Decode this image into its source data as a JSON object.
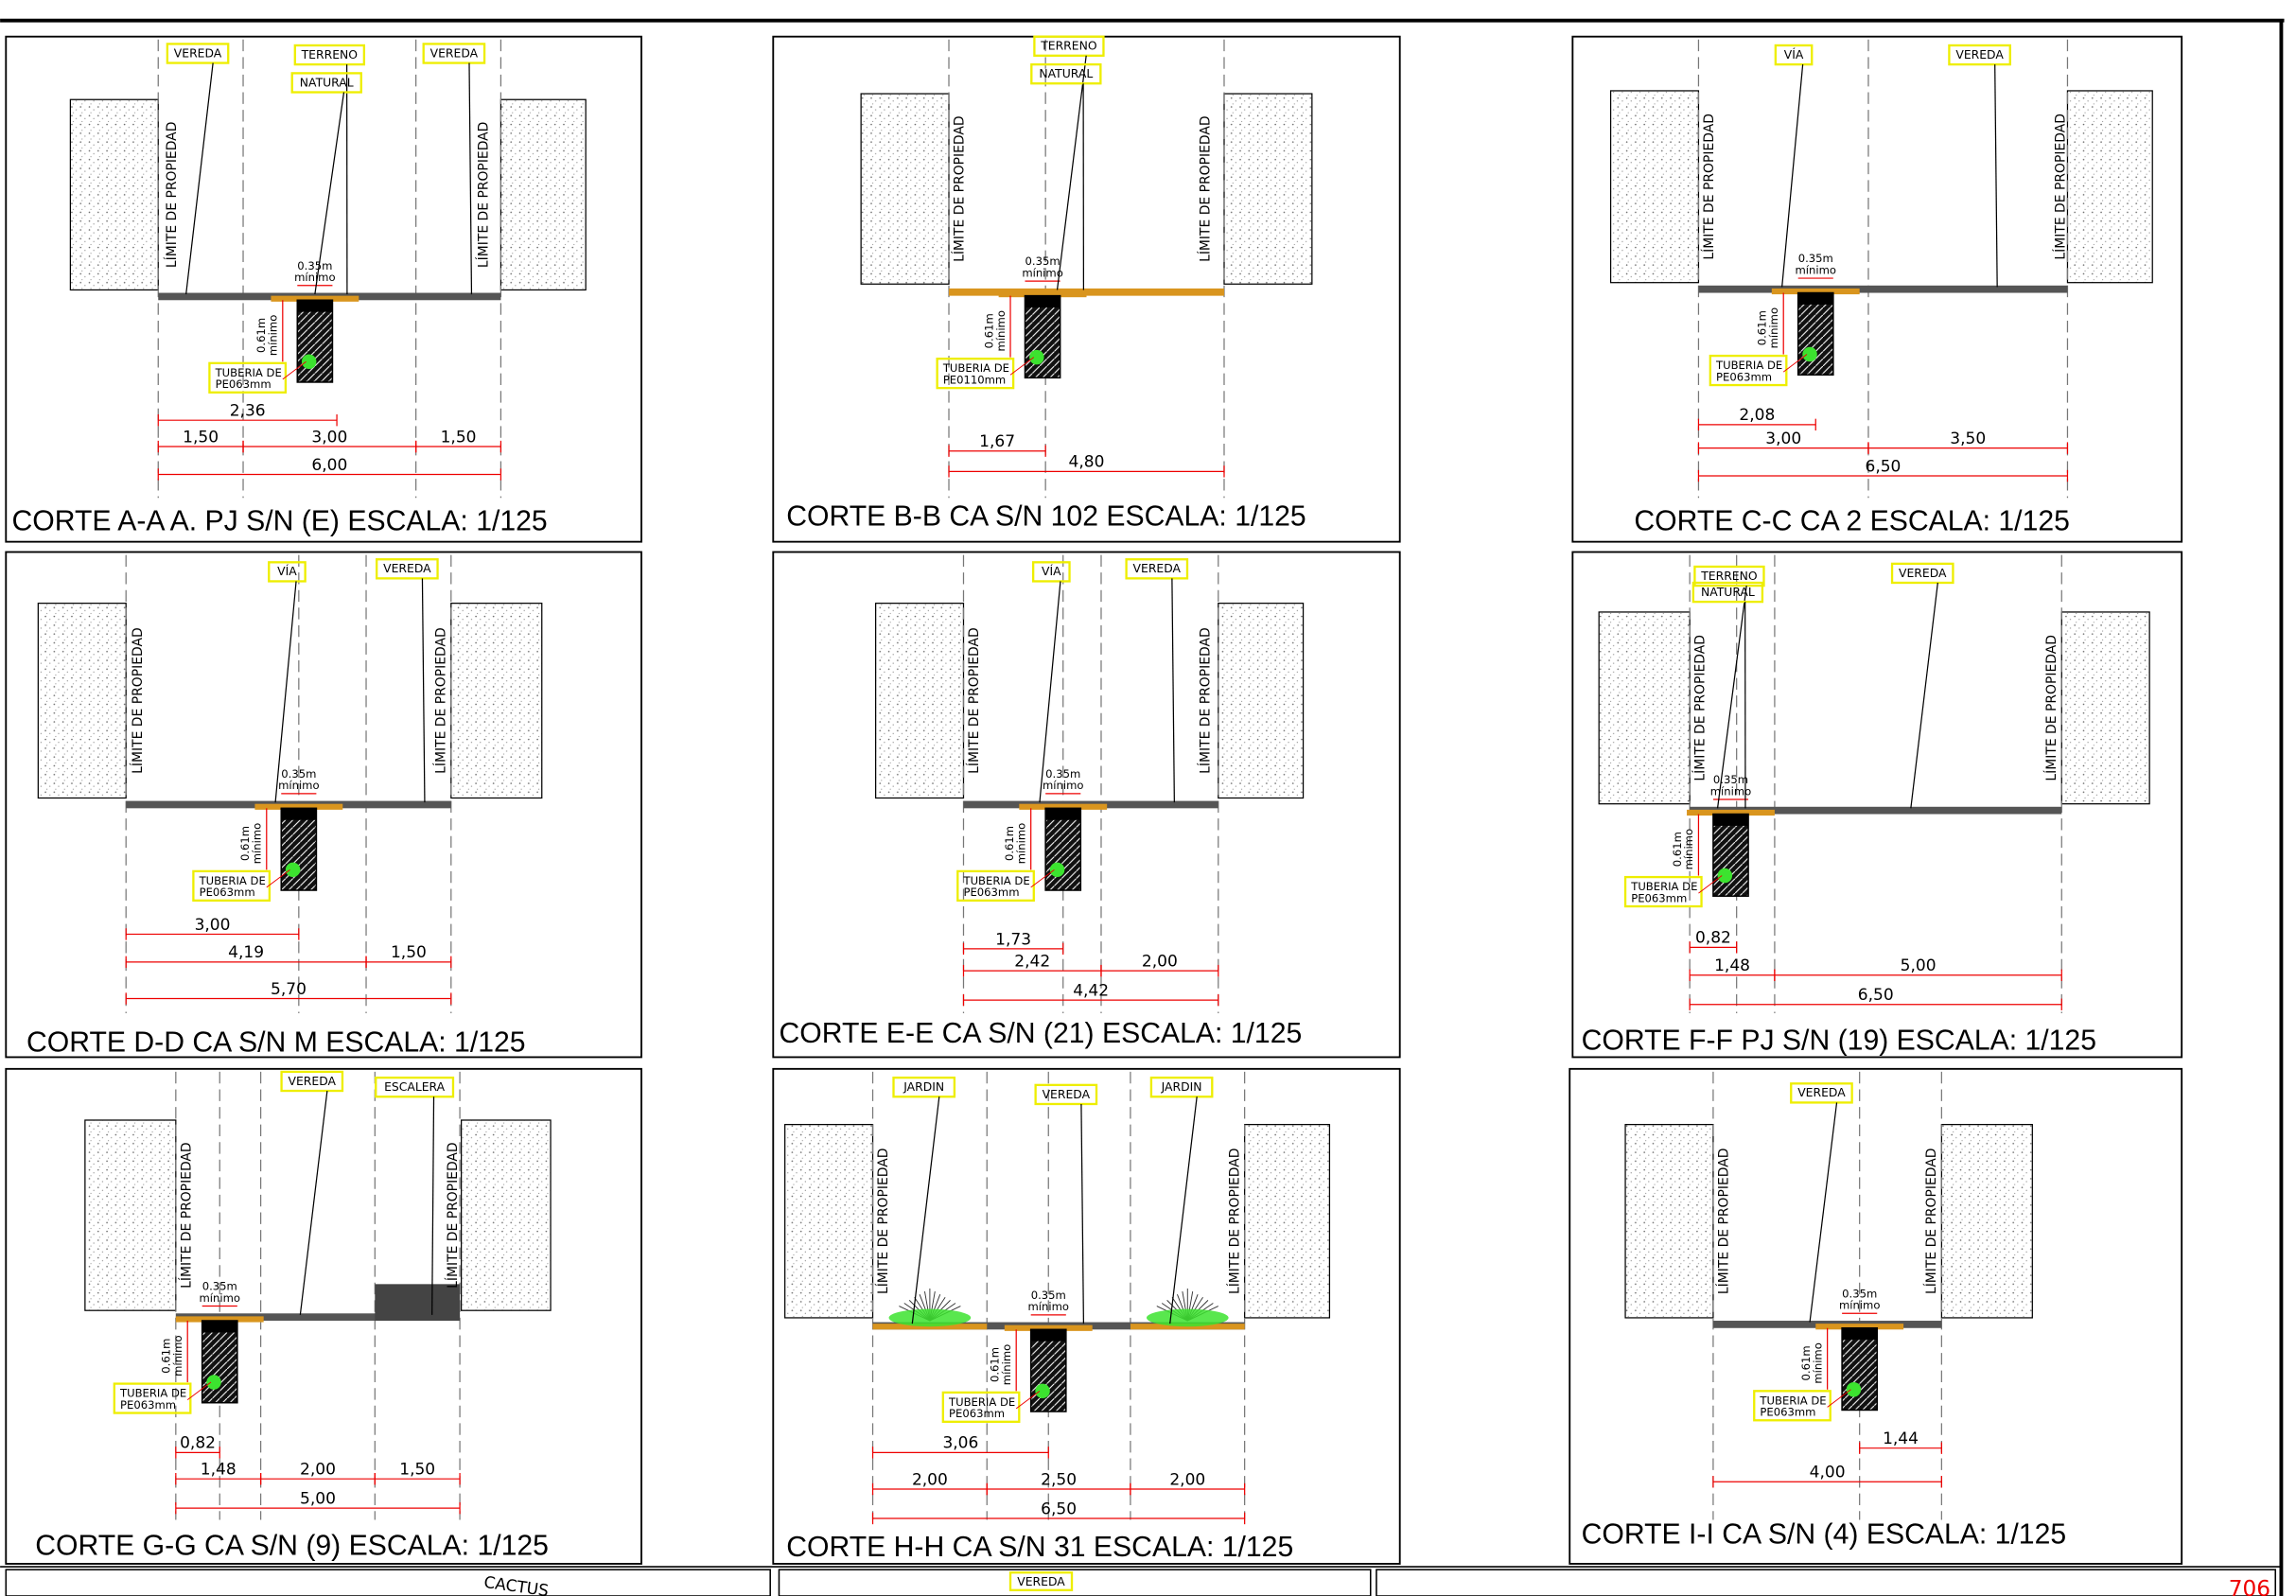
{
  "panels": [
    {
      "title": "CORTE A-A  A. PJ S/N (E)  ESCALA: 1/125",
      "tags": [
        "VEREDA",
        "TERRENO",
        "NATURAL",
        "VEREDA"
      ],
      "limits": [
        "LÍMITE DE PROPIEDAD",
        "LÍMITE DE PROPIEDAD"
      ],
      "pipe": [
        "TUBERIA DE",
        "PE063mm"
      ],
      "cover": [
        "0.35m",
        "mínimo"
      ],
      "depth": [
        "0.61m",
        "mínimo"
      ],
      "dims": [
        "2,36",
        "1,50",
        "3,00",
        "1,50",
        "6,00"
      ]
    },
    {
      "title": "CORTE B-B   CA S/N 102  ESCALA: 1/125",
      "tags": [
        "TERRENO",
        "NATURAL"
      ],
      "limits": [
        "LÍMITE DE PROPIEDAD",
        "LÍMITE DE PROPIEDAD"
      ],
      "pipe": [
        "TUBERIA DE",
        "PE0110mm"
      ],
      "cover": [
        "0.35m",
        "mínimo"
      ],
      "depth": [
        "0.61m",
        "mínimo"
      ],
      "dims": [
        "1,67",
        "4,80"
      ]
    },
    {
      "title": "CORTE C-C CA 2  ESCALA: 1/125",
      "tags": [
        "VÍA",
        "VEREDA"
      ],
      "limits": [
        "LÍMITE DE PROPIEDAD",
        "LÍMITE DE PROPIEDAD"
      ],
      "pipe": [
        "TUBERIA DE",
        "PE063mm"
      ],
      "cover": [
        "0.35m",
        "mínimo"
      ],
      "depth": [
        "0.61m",
        "mínimo"
      ],
      "dims": [
        "2,08",
        "3,00",
        "3,50",
        "6,50"
      ]
    },
    {
      "title": "CORTE D-D CA S/N M  ESCALA: 1/125",
      "tags": [
        "VÍA",
        "VEREDA"
      ],
      "limits": [
        "LÍMITE DE PROPIEDAD",
        "LÍMITE DE PROPIEDAD"
      ],
      "pipe": [
        "TUBERIA DE",
        "PE063mm"
      ],
      "cover": [
        "0.35m",
        "mínimo"
      ],
      "depth": [
        "0.61m",
        "mínimo"
      ],
      "dims": [
        "3,00",
        "4,19",
        "1,50",
        "5,70"
      ]
    },
    {
      "title": "CORTE E-E CA S/N (21)  ESCALA: 1/125",
      "tags": [
        "VÍA",
        "VEREDA"
      ],
      "limits": [
        "LÍMITE DE PROPIEDAD",
        "LÍMITE DE PROPIEDAD"
      ],
      "pipe": [
        "TUBERIA DE",
        "PE063mm"
      ],
      "cover": [
        "0.35m",
        "mínimo"
      ],
      "depth": [
        "0.61m",
        "mínimo"
      ],
      "dims": [
        "1,73",
        "2,42",
        "2,00",
        "4,42"
      ]
    },
    {
      "title": "CORTE F-F  PJ S/N (19)  ESCALA: 1/125",
      "tags": [
        "TERRENO",
        "NATURAL",
        "VEREDA"
      ],
      "limits": [
        "LÍMITE DE PROPIEDAD",
        "LÍMITE DE PROPIEDAD"
      ],
      "pipe": [
        "TUBERIA DE",
        "PE063mm"
      ],
      "cover": [
        "0.35m",
        "mínimo"
      ],
      "depth": [
        "0.61m",
        "mínimo"
      ],
      "dims": [
        "0,82",
        "1,48",
        "5,00",
        "6,50"
      ]
    },
    {
      "title": "CORTE G-G   CA S/N (9)  ESCALA: 1/125",
      "tags": [
        "VEREDA",
        "ESCALERA"
      ],
      "limits": [
        "LÍMITE DE PROPIEDAD",
        "LÍMITE DE PROPIEDAD"
      ],
      "pipe": [
        "TUBERIA DE",
        "PE063mm"
      ],
      "cover": [
        "0.35m",
        "mínimo"
      ],
      "depth": [
        "0.61m",
        "mínimo"
      ],
      "dims": [
        "0,82",
        "1,48",
        "2,00",
        "1,50",
        "5,00"
      ]
    },
    {
      "title": "CORTE H-H   CA S/N 31  ESCALA: 1/125",
      "tags": [
        "JARDIN",
        "VEREDA",
        "JARDIN"
      ],
      "limits": [
        "LÍMITE DE PROPIEDAD",
        "LÍMITE DE PROPIEDAD"
      ],
      "pipe": [
        "TUBERIA DE",
        "PE063mm"
      ],
      "cover": [
        "0.35m",
        "mínimo"
      ],
      "depth": [
        "0.61m",
        "mínimo"
      ],
      "dims": [
        "3,06",
        "2,00",
        "2,50",
        "2,00",
        "6,50"
      ]
    },
    {
      "title": "CORTE I-I   CA S/N (4)    ESCALA: 1/125",
      "tags": [
        "VEREDA"
      ],
      "limits": [
        "LÍMITE DE PROPIEDAD",
        "LÍMITE DE PROPIEDAD"
      ],
      "pipe": [
        "TUBERIA DE",
        "PE063mm"
      ],
      "cover": [
        "0.35m",
        "mínimo"
      ],
      "depth": [
        "0.61m",
        "mínimo"
      ],
      "dims": [
        "1,44",
        "4,00"
      ]
    }
  ],
  "bottom": [
    "CACTUS",
    "VEREDA",
    "706"
  ]
}
